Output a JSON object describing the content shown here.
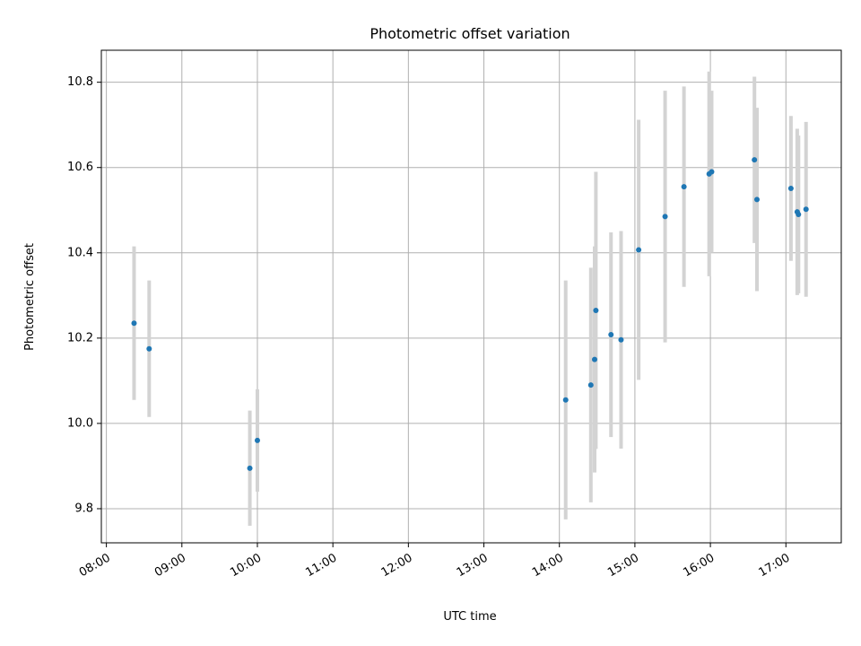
{
  "chart_data": {
    "type": "scatter",
    "title": "Photometric offset variation",
    "xlabel": "UTC time",
    "ylabel": "Photometric offset",
    "x_ticks": [
      "08:00",
      "09:00",
      "10:00",
      "11:00",
      "12:00",
      "13:00",
      "14:00",
      "15:00",
      "16:00",
      "17:00"
    ],
    "y_ticks": [
      "9.8",
      "10.0",
      "10.2",
      "10.4",
      "10.6",
      "10.8"
    ],
    "xlim": [
      "07:56",
      "17:44"
    ],
    "ylim": [
      9.72,
      10.875
    ],
    "grid": true,
    "marker_color": "#1f77b4",
    "errorbar_color": "#d3d3d3",
    "points": [
      {
        "time": "08:22",
        "y": 10.235,
        "err": 0.18
      },
      {
        "time": "08:34",
        "y": 10.175,
        "err": 0.16
      },
      {
        "time": "09:54",
        "y": 9.895,
        "err": 0.135
      },
      {
        "time": "10:00",
        "y": 9.96,
        "err": 0.12
      },
      {
        "time": "14:05",
        "y": 10.055,
        "err": 0.28
      },
      {
        "time": "14:25",
        "y": 10.09,
        "err": 0.275
      },
      {
        "time": "14:28",
        "y": 10.15,
        "err": 0.265
      },
      {
        "time": "14:29",
        "y": 10.265,
        "err": 0.325
      },
      {
        "time": "14:41",
        "y": 10.208,
        "err": 0.24
      },
      {
        "time": "14:49",
        "y": 10.196,
        "err": 0.255
      },
      {
        "time": "15:03",
        "y": 10.407,
        "err": 0.305
      },
      {
        "time": "15:24",
        "y": 10.485,
        "err": 0.295
      },
      {
        "time": "15:39",
        "y": 10.555,
        "err": 0.235
      },
      {
        "time": "15:59",
        "y": 10.585,
        "err": 0.24
      },
      {
        "time": "16:01",
        "y": 10.59,
        "err": 0.19
      },
      {
        "time": "16:35",
        "y": 10.618,
        "err": 0.195
      },
      {
        "time": "16:37",
        "y": 10.525,
        "err": 0.215
      },
      {
        "time": "17:04",
        "y": 10.551,
        "err": 0.17
      },
      {
        "time": "17:09",
        "y": 10.496,
        "err": 0.195
      },
      {
        "time": "17:10",
        "y": 10.49,
        "err": 0.185
      },
      {
        "time": "17:16",
        "y": 10.502,
        "err": 0.205
      }
    ]
  }
}
